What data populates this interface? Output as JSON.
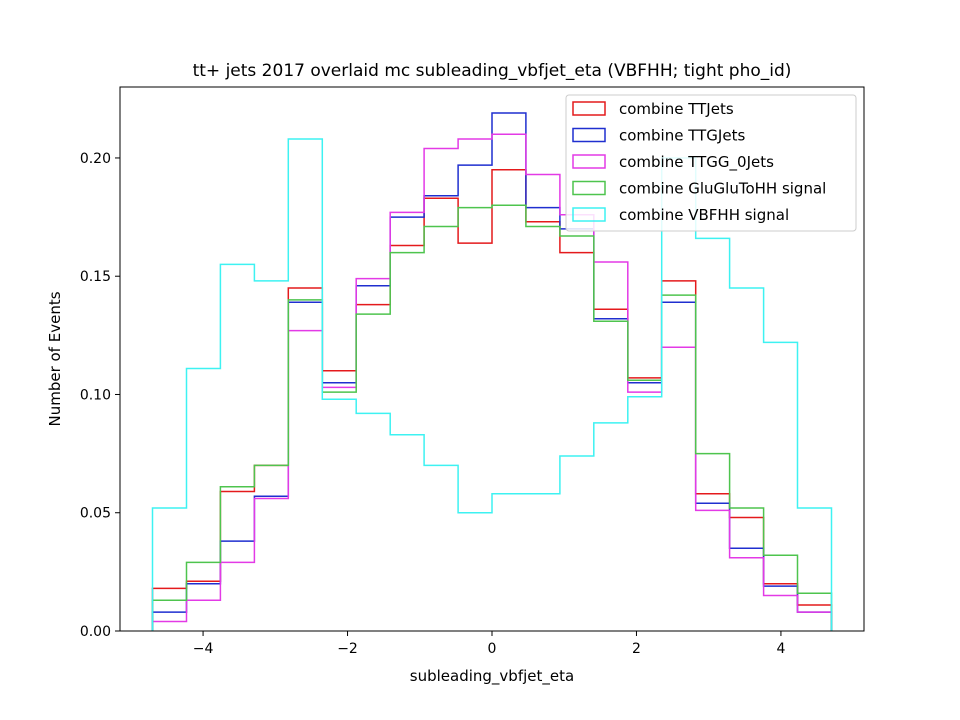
{
  "chart_data": {
    "type": "histogram-step",
    "title": "tt+ jets 2017 overlaid mc subleading_vbfjet_eta (VBFHH; tight pho_id)",
    "xlabel": "subleading_vbfjet_eta",
    "ylabel": "Number of Events",
    "xlim": [
      -5.15,
      5.15
    ],
    "ylim": [
      0.0,
      0.23
    ],
    "xticks": [
      -4,
      -2,
      0,
      2,
      4
    ],
    "xtick_labels": [
      "−4",
      "−2",
      "0",
      "2",
      "4"
    ],
    "yticks": [
      0.0,
      0.05,
      0.1,
      0.15,
      0.2
    ],
    "ytick_labels": [
      "0.00",
      "0.05",
      "0.10",
      "0.15",
      "0.20"
    ],
    "grid": false,
    "legend_position": "top-right",
    "bin_edges": [
      -4.7,
      -4.23,
      -3.76,
      -3.29,
      -2.82,
      -2.35,
      -1.88,
      -1.41,
      -0.94,
      -0.47,
      0.0,
      0.47,
      0.94,
      1.41,
      1.88,
      2.35,
      2.82,
      3.29,
      3.76,
      4.23,
      4.7
    ],
    "series": [
      {
        "name": "combine TTJets",
        "color": "#e41a1c",
        "values": [
          0.018,
          0.021,
          0.059,
          0.07,
          0.145,
          0.11,
          0.138,
          0.163,
          0.183,
          0.164,
          0.195,
          0.173,
          0.16,
          0.136,
          0.107,
          0.148,
          0.058,
          0.048,
          0.02,
          0.011
        ]
      },
      {
        "name": "combine TTGJets",
        "color": "#1f2fcf",
        "values": [
          0.008,
          0.02,
          0.038,
          0.057,
          0.139,
          0.105,
          0.146,
          0.175,
          0.184,
          0.197,
          0.219,
          0.179,
          0.17,
          0.132,
          0.105,
          0.139,
          0.054,
          0.035,
          0.019,
          0.008
        ]
      },
      {
        "name": "combine TTGG_0Jets",
        "color": "#e33ae6",
        "values": [
          0.004,
          0.013,
          0.029,
          0.056,
          0.127,
          0.103,
          0.149,
          0.177,
          0.204,
          0.208,
          0.21,
          0.193,
          0.176,
          0.156,
          0.101,
          0.12,
          0.051,
          0.031,
          0.015,
          0.008
        ]
      },
      {
        "name": "combine GluGluToHH signal",
        "color": "#4ec44e",
        "values": [
          0.013,
          0.029,
          0.061,
          0.07,
          0.14,
          0.101,
          0.134,
          0.16,
          0.171,
          0.179,
          0.18,
          0.171,
          0.167,
          0.131,
          0.106,
          0.142,
          0.075,
          0.052,
          0.032,
          0.016
        ]
      },
      {
        "name": "combine VBFHH signal",
        "color": "#3df2f2",
        "values": [
          0.052,
          0.111,
          0.155,
          0.148,
          0.208,
          0.098,
          0.092,
          0.083,
          0.07,
          0.05,
          0.058,
          0.058,
          0.074,
          0.088,
          0.099,
          0.2,
          0.166,
          0.145,
          0.122,
          0.052
        ]
      }
    ]
  }
}
